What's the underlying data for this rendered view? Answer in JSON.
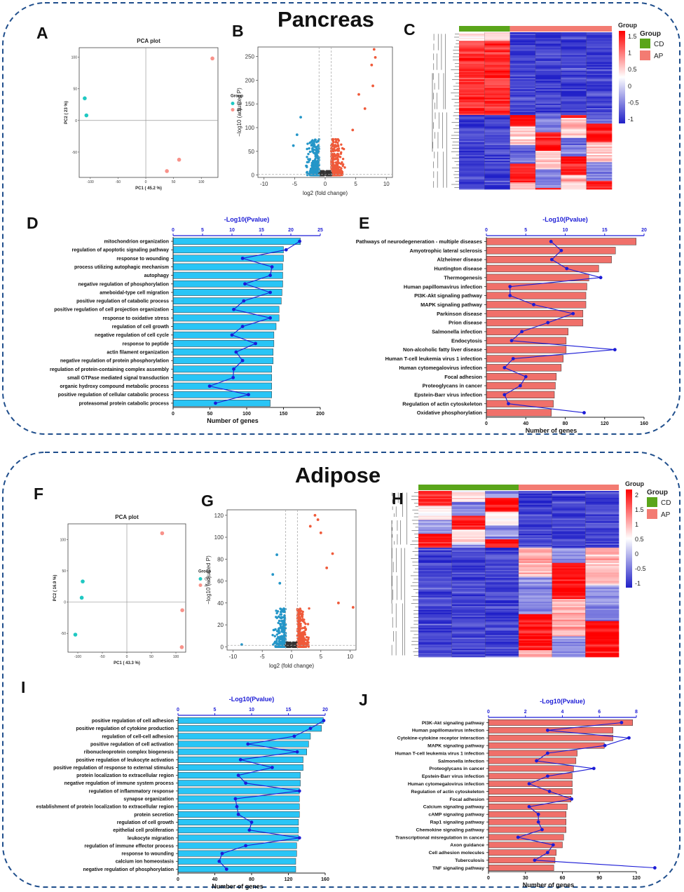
{
  "sections": [
    {
      "id": "pancreas",
      "title": "Pancreas"
    },
    {
      "id": "adipose",
      "title": "Adipose"
    }
  ],
  "colors": {
    "border": "#1f4e8c",
    "bar_blue": "#29c5f6",
    "bar_red": "#f0706a",
    "line": "#1c1cd6",
    "axis_blue": "#1c1cd6",
    "cd": "#5aa51a",
    "ap": "#f37b72",
    "pca_cd": "#1fc8c2",
    "pca_ap": "#f8928a",
    "volcano_down": "#2496c8",
    "volcano_up": "#ef5a3a",
    "volcano_ns": "#333333"
  },
  "chart_data": [
    {
      "panel": "A",
      "type": "scatter",
      "title": "PCA plot",
      "xlabel": "PC1 ( 45.2 %)",
      "ylabel": "PC2 ( 23 %)",
      "xlim": [
        -120,
        130
      ],
      "ylim": [
        -90,
        115
      ],
      "xticks": [
        -100,
        -50,
        0,
        50,
        100
      ],
      "yticks": [
        -50,
        0,
        50,
        100
      ],
      "legend_title": "Group",
      "legend": [
        "CD",
        "AP"
      ],
      "series": [
        {
          "name": "CD",
          "points": [
            [
              -110,
              35
            ],
            [
              -107,
              8
            ]
          ]
        },
        {
          "name": "AP",
          "points": [
            [
              120,
              98
            ],
            [
              60,
              -62
            ],
            [
              38,
              -80
            ]
          ]
        }
      ]
    },
    {
      "panel": "B",
      "type": "scatter",
      "subtype": "volcano",
      "xlabel": "log2 (fold change)",
      "ylabel": "−log10 (adjusted P)",
      "xlim": [
        -11,
        11
      ],
      "ylim": [
        -5,
        270
      ],
      "xticks": [
        -10,
        -5,
        0,
        5,
        10
      ],
      "yticks": [
        0,
        50,
        100,
        150,
        200,
        250
      ],
      "highlight_points": [
        [
          8,
          265
        ],
        [
          7.6,
          232
        ],
        [
          8.2,
          248
        ],
        [
          7.8,
          188
        ],
        [
          5.5,
          170
        ],
        [
          6.5,
          140
        ],
        [
          4.5,
          95
        ],
        [
          -4,
          122
        ],
        [
          -4.6,
          85
        ],
        [
          -5.2,
          62
        ]
      ]
    },
    {
      "panel": "C",
      "type": "heatmap",
      "legend_title": "Group",
      "legend": [
        "CD",
        "AP"
      ],
      "scale_ticks": [
        "1.5",
        "1",
        "0.5",
        "0",
        "-0.5",
        "-1"
      ]
    },
    {
      "panel": "D",
      "type": "bar",
      "orientation": "horizontal",
      "xlabel": "Number of genes",
      "top_axis_label": "-Log10(Pvalue)",
      "xlim": [
        0,
        200
      ],
      "xticks": [
        0,
        50,
        100,
        150,
        200
      ],
      "top_lim": [
        0,
        25
      ],
      "top_ticks": [
        0,
        5,
        10,
        15,
        20,
        25
      ],
      "categories": [
        "mitochondrion organization",
        "regulation of apoptotic signaling pathway",
        "response to wounding",
        "process utilizing autophagic mechanism",
        "autophagy",
        "negative regulation of phosphorylation",
        "ameboidal-type cell migration",
        "positive regulation of catabolic process",
        "positive regulation of cell projection organization",
        "response to oxidative stress",
        "regulation of cell growth",
        "negative regulation of cell cycle",
        "response to peptide",
        "actin filament organization",
        "negative regulation of protein phosphorylation",
        "regulation of protein-containing complex assembly",
        "small GTPase mediated signal transduction",
        "organic hydroxy compound metabolic process",
        "positive regulation of cellular catabolic process",
        "proteasomal protein catabolic process"
      ],
      "values": [
        173,
        150,
        150,
        149,
        149,
        149,
        148,
        147,
        144,
        144,
        140,
        137,
        137,
        136,
        136,
        134,
        134,
        134,
        134,
        132
      ],
      "pvalues": [
        21.5,
        19.2,
        11.8,
        16.8,
        16.5,
        12.2,
        16.5,
        12,
        10.3,
        16.5,
        11.8,
        10,
        14,
        10.7,
        11.8,
        10.3,
        10.2,
        6.2,
        12.8,
        7.2
      ]
    },
    {
      "panel": "E",
      "type": "bar",
      "orientation": "horizontal",
      "xlabel": "Number of genes",
      "top_axis_label": "-Log10(Pvalue)",
      "xlim": [
        0,
        160
      ],
      "xticks": [
        0,
        40,
        80,
        120,
        160
      ],
      "top_lim": [
        0,
        20
      ],
      "top_ticks": [
        0,
        5,
        10,
        15,
        20
      ],
      "categories": [
        "Pathways of neurodegeneration - multiple diseases",
        "Amyotrophic lateral sclerosis",
        "Alzheimer disease",
        "Huntington disease",
        "Thermogenesis",
        "Human papillomavirus infection",
        "PI3K-Akt signaling pathway",
        "MAPK signaling pathway",
        "Parkinson disease",
        "Prion disease",
        "Salmonella infection",
        "Endocytosis",
        "Non-alcoholic fatty liver disease",
        "Human T-cell leukemia virus 1 infection",
        "Human cytomegalovirus infection",
        "Focal adhesion",
        "Proteoglycans in cancer",
        "Epstein-Barr virus infection",
        "Regulation of actin cytoskeleton",
        "Oxidative phosphorylation"
      ],
      "values": [
        152,
        131,
        127,
        114,
        104,
        102,
        101,
        101,
        98,
        98,
        83,
        81,
        81,
        78,
        76,
        71,
        70,
        69,
        68,
        66
      ],
      "pvalues": [
        8.2,
        9.5,
        8.3,
        10.2,
        14.5,
        3,
        3,
        6,
        11,
        7.8,
        4.5,
        3.2,
        16.3,
        3.4,
        2.3,
        5,
        4.3,
        2.3,
        2.8,
        12.4
      ]
    },
    {
      "panel": "F",
      "type": "scatter",
      "title": "PCA plot",
      "xlabel": "PC1 ( 43.3 %)",
      "ylabel": "PC2 ( 16.9 %)",
      "xlim": [
        -120,
        120
      ],
      "ylim": [
        -80,
        125
      ],
      "xticks": [
        -100,
        -50,
        0,
        50,
        100
      ],
      "yticks": [
        -50,
        0,
        50,
        100
      ],
      "legend_title": "Group",
      "legend": [
        "CD",
        "AP"
      ],
      "series": [
        {
          "name": "CD",
          "points": [
            [
              -90,
              33
            ],
            [
              -92,
              7
            ],
            [
              -105,
              -52
            ]
          ]
        },
        {
          "name": "AP",
          "points": [
            [
              72,
              110
            ],
            [
              113,
              -13
            ],
            [
              112,
              -72
            ]
          ]
        }
      ]
    },
    {
      "panel": "G",
      "type": "scatter",
      "subtype": "volcano",
      "xlabel": "log2 (fold change)",
      "ylabel": "−log10 (adjusted P)",
      "xlim": [
        -11,
        11
      ],
      "ylim": [
        -3,
        125
      ],
      "xticks": [
        -10,
        -5,
        0,
        5,
        10
      ],
      "yticks": [
        0,
        20,
        40,
        60,
        80,
        100,
        120
      ],
      "highlight_points": [
        [
          4,
          120
        ],
        [
          4.5,
          116
        ],
        [
          3.2,
          110
        ],
        [
          5,
          104
        ],
        [
          7,
          85
        ],
        [
          6,
          72
        ],
        [
          10.5,
          36
        ],
        [
          8,
          40
        ],
        [
          -2.5,
          84
        ],
        [
          -3.2,
          66
        ],
        [
          -2,
          58
        ],
        [
          -8.5,
          2
        ]
      ]
    },
    {
      "panel": "H",
      "type": "heatmap",
      "legend_title": "Group",
      "legend": [
        "CD",
        "AP"
      ],
      "scale_ticks": [
        "2",
        "1.5",
        "1",
        "0.5",
        "0",
        "-0.5",
        "-1"
      ]
    },
    {
      "panel": "I",
      "type": "bar",
      "orientation": "horizontal",
      "xlabel": "Number of genes",
      "top_axis_label": "-Log10(Pvalue)",
      "xlim": [
        0,
        160
      ],
      "xticks": [
        0,
        40,
        80,
        120,
        160
      ],
      "top_lim": [
        0,
        20
      ],
      "top_ticks": [
        0,
        5,
        10,
        15,
        20
      ],
      "categories": [
        "positive regulation of cell adhesion",
        "positive regulation of cytokine production",
        "regulation of cell-cell adhesion",
        "positive regulation of cell activation",
        "ribonucleoprotein complex biogenesis",
        "positive regulation of leukocyte activation",
        "positive regulation of response to external stimulus",
        "protein localization to extracellular region",
        "negative regulation of immune system process",
        "regulation of inflammatory response",
        "synapse organization",
        "establishment of protein localization to extracellular region",
        "protein secretion",
        "regulation of cell growth",
        "epithelial cell proliferation",
        "leukocyte migration",
        "regulation of immune effector process",
        "response to wounding",
        "calcium ion homeostasis",
        "negative regulation of phosphorylation"
      ],
      "values": [
        158,
        156,
        144,
        142,
        140,
        136,
        136,
        133,
        133,
        132,
        132,
        132,
        132,
        131,
        131,
        131,
        129,
        129,
        128,
        128
      ],
      "pvalues": [
        19.8,
        18,
        15.8,
        9.5,
        16.2,
        8.5,
        12.8,
        8.2,
        9.2,
        16.5,
        7.8,
        8,
        8.2,
        10,
        9.7,
        16.5,
        9.2,
        6,
        5.6,
        6.6
      ]
    },
    {
      "panel": "J",
      "type": "bar",
      "orientation": "horizontal",
      "xlabel": "Number of genes",
      "top_axis_label": "-Log10(Pvalue)",
      "xlim": [
        0,
        120
      ],
      "xticks": [
        0,
        30,
        60,
        90,
        120
      ],
      "top_lim": [
        0,
        8
      ],
      "top_ticks": [
        0,
        2,
        4,
        6,
        8
      ],
      "categories": [
        "PI3K-Akt signaling pathway",
        "Human papillomavirus infection",
        "Cytokine-cytokine receptor interaction",
        "MAPK signaling pathway",
        "Human T-cell leukemia virus 1 infection",
        "Salmonella infection",
        "Proteoglycans in cancer",
        "Epstein-Barr virus infection",
        "Human cytomegalovirus infection",
        "Regulation of actin cytoskeleton",
        "Focal adhesion",
        "Calcium signaling pathway",
        "cAMP signaling pathway",
        "Rap1 signaling pathway",
        "Chemokine signaling pathway",
        "Transcriptional misregulation in cancer",
        "Axon guidance",
        "Cell adhesion molecules",
        "Tuberculosis",
        "TNF signaling pathway"
      ],
      "values": [
        117,
        101,
        101,
        94,
        72,
        71,
        69,
        68,
        68,
        68,
        67,
        64,
        63,
        63,
        63,
        61,
        60,
        55,
        54,
        53
      ],
      "pvalues": [
        7.2,
        3.2,
        7.6,
        6.3,
        3.2,
        2.6,
        5.7,
        3.2,
        2.2,
        3.3,
        4.5,
        2.2,
        2.7,
        2.7,
        2.9,
        1.6,
        3.5,
        3.2,
        2.5,
        9
      ]
    }
  ]
}
